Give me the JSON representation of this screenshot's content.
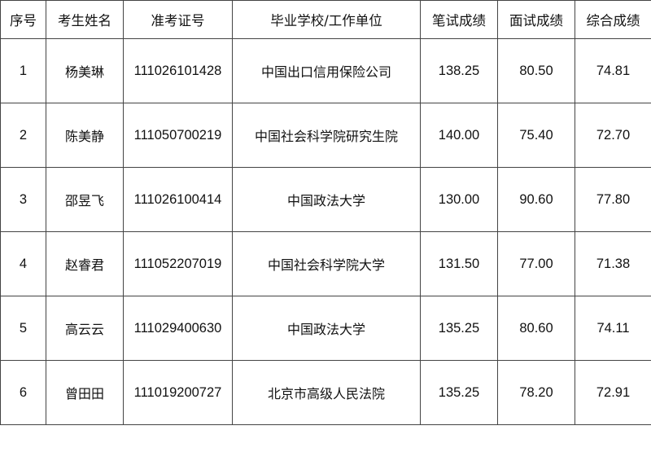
{
  "table": {
    "headers": [
      "序号",
      "考生姓名",
      "准考证号",
      "毕业学校/工作单位",
      "笔试成绩",
      "面试成绩",
      "综合成绩"
    ],
    "rows": [
      [
        "1",
        "杨美琳",
        "111026101428",
        "中国出口信用保险公司",
        "138.25",
        "80.50",
        "74.81"
      ],
      [
        "2",
        "陈美静",
        "111050700219",
        "中国社会科学院研究生院",
        "140.00",
        "75.40",
        "72.70"
      ],
      [
        "3",
        "邵昱飞",
        "111026100414",
        "中国政法大学",
        "130.00",
        "90.60",
        "77.80"
      ],
      [
        "4",
        "赵睿君",
        "111052207019",
        "中国社会科学院大学",
        "131.50",
        "77.00",
        "71.38"
      ],
      [
        "5",
        "高云云",
        "111029400630",
        "中国政法大学",
        "135.25",
        "80.60",
        "74.11"
      ],
      [
        "6",
        "曾田田",
        "111019200727",
        "北京市高级人民法院",
        "135.25",
        "78.20",
        "72.91"
      ]
    ]
  }
}
